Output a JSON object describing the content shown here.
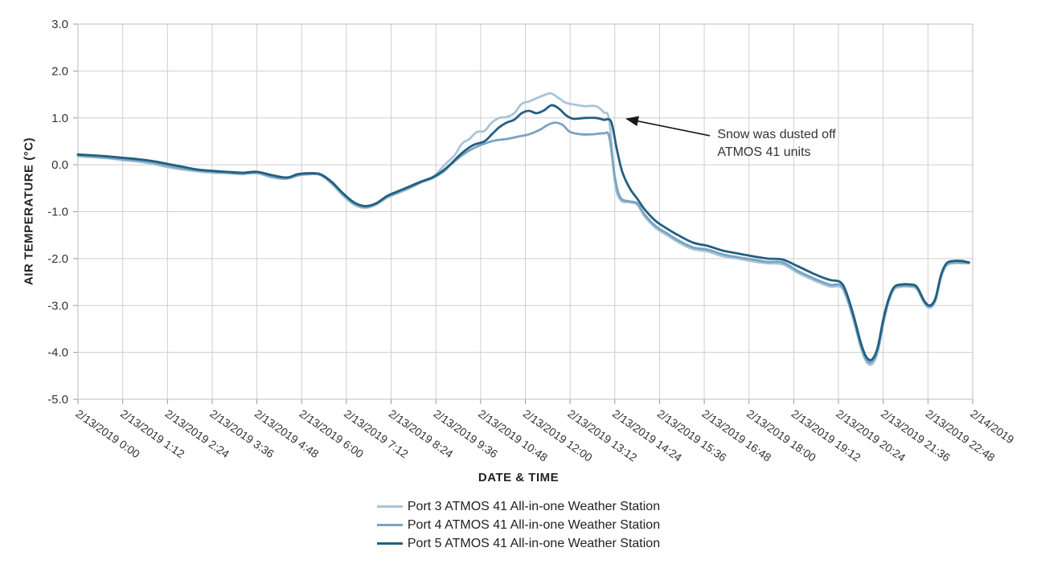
{
  "chart_data": {
    "type": "line",
    "title": "",
    "xlabel": "DATE & TIME",
    "ylabel": "AIR TEMPERATURE (°C)",
    "ylim": [
      -5,
      3
    ],
    "ytick_step": 1,
    "xlim": [
      0,
      24
    ],
    "grid": true,
    "legend_position": "bottom",
    "xticks": [
      {
        "x": 0,
        "label": "2/13/2019 0:00"
      },
      {
        "x": 1.2,
        "label": "2/13/2019 1:12"
      },
      {
        "x": 2.4,
        "label": "2/13/2019 2:24"
      },
      {
        "x": 3.6,
        "label": "2/13/2019 3:36"
      },
      {
        "x": 4.8,
        "label": "2/13/2019 4:48"
      },
      {
        "x": 6,
        "label": "2/13/2019 6:00"
      },
      {
        "x": 7.2,
        "label": "2/13/2019 7:12"
      },
      {
        "x": 8.4,
        "label": "2/13/2019 8:24"
      },
      {
        "x": 9.6,
        "label": "2/13/2019 9:36"
      },
      {
        "x": 10.8,
        "label": "2/13/2019 10:48"
      },
      {
        "x": 12,
        "label": "2/13/2019 12:00"
      },
      {
        "x": 13.2,
        "label": "2/13/2019 13:12"
      },
      {
        "x": 14.4,
        "label": "2/13/2019 14:24"
      },
      {
        "x": 15.6,
        "label": "2/13/2019 15:36"
      },
      {
        "x": 16.8,
        "label": "2/13/2019 16:48"
      },
      {
        "x": 18,
        "label": "2/13/2019 18:00"
      },
      {
        "x": 19.2,
        "label": "2/13/2019 19:12"
      },
      {
        "x": 20.4,
        "label": "2/13/2019 20:24"
      },
      {
        "x": 21.6,
        "label": "2/13/2019 21:36"
      },
      {
        "x": 22.8,
        "label": "2/13/2019 22:48"
      },
      {
        "x": 24,
        "label": "2/14/2019"
      }
    ],
    "annotation": {
      "line1": "Snow was dusted off",
      "line2": "ATMOS 41 units",
      "text_x": 17.15,
      "text_y": 0.82,
      "arrow_from": [
        16.95,
        0.62
      ],
      "arrow_to": [
        14.72,
        0.98
      ]
    },
    "series": [
      {
        "name": "Port 3 ATMOS 41 All-in-one Weather Station",
        "color": "#a9c5d8",
        "points": [
          [
            0,
            0.18
          ],
          [
            0.4,
            0.16
          ],
          [
            0.8,
            0.14
          ],
          [
            1.2,
            0.1
          ],
          [
            1.6,
            0.07
          ],
          [
            2,
            0.02
          ],
          [
            2.4,
            -0.05
          ],
          [
            2.8,
            -0.1
          ],
          [
            3.2,
            -0.14
          ],
          [
            3.6,
            -0.17
          ],
          [
            4,
            -0.18
          ],
          [
            4.4,
            -0.2
          ],
          [
            4.8,
            -0.18
          ],
          [
            5.2,
            -0.27
          ],
          [
            5.6,
            -0.3
          ],
          [
            5.9,
            -0.23
          ],
          [
            6.2,
            -0.2
          ],
          [
            6.5,
            -0.22
          ],
          [
            6.8,
            -0.4
          ],
          [
            7.1,
            -0.65
          ],
          [
            7.4,
            -0.85
          ],
          [
            7.7,
            -0.92
          ],
          [
            8,
            -0.85
          ],
          [
            8.3,
            -0.7
          ],
          [
            8.6,
            -0.6
          ],
          [
            8.9,
            -0.5
          ],
          [
            9.2,
            -0.38
          ],
          [
            9.5,
            -0.28
          ],
          [
            9.7,
            -0.12
          ],
          [
            9.9,
            0.05
          ],
          [
            10.1,
            0.2
          ],
          [
            10.3,
            0.45
          ],
          [
            10.5,
            0.55
          ],
          [
            10.7,
            0.7
          ],
          [
            10.9,
            0.72
          ],
          [
            11.1,
            0.9
          ],
          [
            11.3,
            1.0
          ],
          [
            11.5,
            1.02
          ],
          [
            11.7,
            1.1
          ],
          [
            11.9,
            1.3
          ],
          [
            12.1,
            1.35
          ],
          [
            12.3,
            1.42
          ],
          [
            12.55,
            1.5
          ],
          [
            12.7,
            1.52
          ],
          [
            12.9,
            1.42
          ],
          [
            13.1,
            1.32
          ],
          [
            13.35,
            1.28
          ],
          [
            13.6,
            1.25
          ],
          [
            13.9,
            1.25
          ],
          [
            14.1,
            1.12
          ],
          [
            14.25,
            0.95
          ],
          [
            14.4,
            -0.35
          ],
          [
            14.55,
            -0.75
          ],
          [
            14.8,
            -0.8
          ],
          [
            15,
            -0.85
          ],
          [
            15.2,
            -1.1
          ],
          [
            15.5,
            -1.35
          ],
          [
            15.8,
            -1.5
          ],
          [
            16.1,
            -1.65
          ],
          [
            16.5,
            -1.8
          ],
          [
            16.9,
            -1.85
          ],
          [
            17.3,
            -1.95
          ],
          [
            17.7,
            -2.0
          ],
          [
            18.1,
            -2.06
          ],
          [
            18.5,
            -2.1
          ],
          [
            18.9,
            -2.12
          ],
          [
            19.3,
            -2.3
          ],
          [
            19.7,
            -2.45
          ],
          [
            20,
            -2.55
          ],
          [
            20.2,
            -2.6
          ],
          [
            20.45,
            -2.6
          ],
          [
            20.6,
            -2.8
          ],
          [
            20.8,
            -3.3
          ],
          [
            21,
            -3.9
          ],
          [
            21.15,
            -4.2
          ],
          [
            21.3,
            -4.25
          ],
          [
            21.45,
            -4.0
          ],
          [
            21.6,
            -3.4
          ],
          [
            21.75,
            -2.9
          ],
          [
            21.9,
            -2.65
          ],
          [
            22.1,
            -2.6
          ],
          [
            22.3,
            -2.6
          ],
          [
            22.5,
            -2.65
          ],
          [
            22.7,
            -2.95
          ],
          [
            22.85,
            -3.05
          ],
          [
            23,
            -2.9
          ],
          [
            23.15,
            -2.4
          ],
          [
            23.3,
            -2.15
          ],
          [
            23.5,
            -2.1
          ],
          [
            23.7,
            -2.1
          ],
          [
            23.9,
            -2.1
          ]
        ]
      },
      {
        "name": "Port 4 ATMOS 41 All-in-one Weather Station",
        "color": "#7aa3c0",
        "points": [
          [
            0,
            0.2
          ],
          [
            0.4,
            0.18
          ],
          [
            0.8,
            0.15
          ],
          [
            1.2,
            0.12
          ],
          [
            1.6,
            0.09
          ],
          [
            2,
            0.05
          ],
          [
            2.4,
            -0.02
          ],
          [
            2.8,
            -0.08
          ],
          [
            3.2,
            -0.12
          ],
          [
            3.6,
            -0.15
          ],
          [
            4,
            -0.17
          ],
          [
            4.4,
            -0.19
          ],
          [
            4.8,
            -0.17
          ],
          [
            5.2,
            -0.25
          ],
          [
            5.6,
            -0.29
          ],
          [
            5.9,
            -0.22
          ],
          [
            6.2,
            -0.2
          ],
          [
            6.5,
            -0.21
          ],
          [
            6.8,
            -0.38
          ],
          [
            7.1,
            -0.62
          ],
          [
            7.4,
            -0.82
          ],
          [
            7.7,
            -0.9
          ],
          [
            8,
            -0.83
          ],
          [
            8.3,
            -0.68
          ],
          [
            8.6,
            -0.58
          ],
          [
            8.9,
            -0.48
          ],
          [
            9.2,
            -0.37
          ],
          [
            9.5,
            -0.29
          ],
          [
            9.8,
            -0.15
          ],
          [
            10,
            0.0
          ],
          [
            10.3,
            0.2
          ],
          [
            10.6,
            0.35
          ],
          [
            10.9,
            0.45
          ],
          [
            11.2,
            0.52
          ],
          [
            11.5,
            0.55
          ],
          [
            11.8,
            0.6
          ],
          [
            12.1,
            0.65
          ],
          [
            12.4,
            0.75
          ],
          [
            12.6,
            0.85
          ],
          [
            12.8,
            0.9
          ],
          [
            13,
            0.85
          ],
          [
            13.2,
            0.7
          ],
          [
            13.5,
            0.65
          ],
          [
            13.8,
            0.65
          ],
          [
            14.1,
            0.67
          ],
          [
            14.25,
            0.6
          ],
          [
            14.4,
            -0.25
          ],
          [
            14.55,
            -0.7
          ],
          [
            14.8,
            -0.78
          ],
          [
            15,
            -0.82
          ],
          [
            15.2,
            -1.06
          ],
          [
            15.5,
            -1.31
          ],
          [
            15.8,
            -1.46
          ],
          [
            16.1,
            -1.61
          ],
          [
            16.5,
            -1.76
          ],
          [
            16.9,
            -1.81
          ],
          [
            17.3,
            -1.91
          ],
          [
            17.7,
            -1.97
          ],
          [
            18.1,
            -2.02
          ],
          [
            18.5,
            -2.07
          ],
          [
            18.9,
            -2.08
          ],
          [
            19.3,
            -2.26
          ],
          [
            19.7,
            -2.41
          ],
          [
            20,
            -2.51
          ],
          [
            20.2,
            -2.56
          ],
          [
            20.45,
            -2.56
          ],
          [
            20.6,
            -2.76
          ],
          [
            20.8,
            -3.26
          ],
          [
            21,
            -3.86
          ],
          [
            21.15,
            -4.16
          ],
          [
            21.3,
            -4.2
          ],
          [
            21.45,
            -3.96
          ],
          [
            21.6,
            -3.36
          ],
          [
            21.75,
            -2.9
          ],
          [
            21.9,
            -2.62
          ],
          [
            22.1,
            -2.58
          ],
          [
            22.3,
            -2.58
          ],
          [
            22.5,
            -2.62
          ],
          [
            22.7,
            -2.92
          ],
          [
            22.85,
            -3.02
          ],
          [
            23,
            -2.88
          ],
          [
            23.15,
            -2.38
          ],
          [
            23.3,
            -2.12
          ],
          [
            23.5,
            -2.08
          ],
          [
            23.7,
            -2.08
          ],
          [
            23.9,
            -2.1
          ]
        ]
      },
      {
        "name": "Port 5 ATMOS 41 All-in-one Weather Station",
        "color": "#235f80",
        "points": [
          [
            0,
            0.22
          ],
          [
            0.4,
            0.2
          ],
          [
            0.8,
            0.18
          ],
          [
            1.2,
            0.15
          ],
          [
            1.6,
            0.12
          ],
          [
            2,
            0.08
          ],
          [
            2.4,
            0.02
          ],
          [
            2.8,
            -0.04
          ],
          [
            3.2,
            -0.1
          ],
          [
            3.6,
            -0.13
          ],
          [
            4,
            -0.15
          ],
          [
            4.4,
            -0.17
          ],
          [
            4.8,
            -0.15
          ],
          [
            5.2,
            -0.22
          ],
          [
            5.6,
            -0.27
          ],
          [
            5.9,
            -0.2
          ],
          [
            6.2,
            -0.18
          ],
          [
            6.5,
            -0.2
          ],
          [
            6.8,
            -0.36
          ],
          [
            7.1,
            -0.6
          ],
          [
            7.4,
            -0.8
          ],
          [
            7.7,
            -0.88
          ],
          [
            8,
            -0.82
          ],
          [
            8.3,
            -0.66
          ],
          [
            8.6,
            -0.56
          ],
          [
            8.9,
            -0.46
          ],
          [
            9.2,
            -0.36
          ],
          [
            9.5,
            -0.27
          ],
          [
            9.8,
            -0.12
          ],
          [
            10,
            0.02
          ],
          [
            10.3,
            0.25
          ],
          [
            10.6,
            0.42
          ],
          [
            10.9,
            0.5
          ],
          [
            11.1,
            0.65
          ],
          [
            11.3,
            0.8
          ],
          [
            11.5,
            0.9
          ],
          [
            11.7,
            0.96
          ],
          [
            11.9,
            1.1
          ],
          [
            12.1,
            1.15
          ],
          [
            12.3,
            1.1
          ],
          [
            12.5,
            1.16
          ],
          [
            12.7,
            1.27
          ],
          [
            12.9,
            1.2
          ],
          [
            13.1,
            1.05
          ],
          [
            13.3,
            0.98
          ],
          [
            13.6,
            1.0
          ],
          [
            13.9,
            1.0
          ],
          [
            14.1,
            0.96
          ],
          [
            14.3,
            0.92
          ],
          [
            14.45,
            0.35
          ],
          [
            14.6,
            -0.15
          ],
          [
            14.8,
            -0.5
          ],
          [
            15,
            -0.72
          ],
          [
            15.2,
            -0.95
          ],
          [
            15.5,
            -1.2
          ],
          [
            15.8,
            -1.36
          ],
          [
            16.1,
            -1.5
          ],
          [
            16.5,
            -1.66
          ],
          [
            16.9,
            -1.73
          ],
          [
            17.3,
            -1.83
          ],
          [
            17.7,
            -1.89
          ],
          [
            18.1,
            -1.95
          ],
          [
            18.5,
            -2.0
          ],
          [
            18.9,
            -2.02
          ],
          [
            19.3,
            -2.16
          ],
          [
            19.7,
            -2.31
          ],
          [
            20,
            -2.41
          ],
          [
            20.2,
            -2.46
          ],
          [
            20.45,
            -2.5
          ],
          [
            20.6,
            -2.7
          ],
          [
            20.8,
            -3.2
          ],
          [
            21,
            -3.8
          ],
          [
            21.15,
            -4.1
          ],
          [
            21.3,
            -4.15
          ],
          [
            21.45,
            -3.9
          ],
          [
            21.6,
            -3.3
          ],
          [
            21.75,
            -2.85
          ],
          [
            21.9,
            -2.6
          ],
          [
            22.1,
            -2.55
          ],
          [
            22.3,
            -2.55
          ],
          [
            22.5,
            -2.6
          ],
          [
            22.7,
            -2.9
          ],
          [
            22.85,
            -3.0
          ],
          [
            23,
            -2.85
          ],
          [
            23.15,
            -2.35
          ],
          [
            23.3,
            -2.1
          ],
          [
            23.5,
            -2.05
          ],
          [
            23.7,
            -2.05
          ],
          [
            23.9,
            -2.08
          ]
        ]
      }
    ]
  }
}
